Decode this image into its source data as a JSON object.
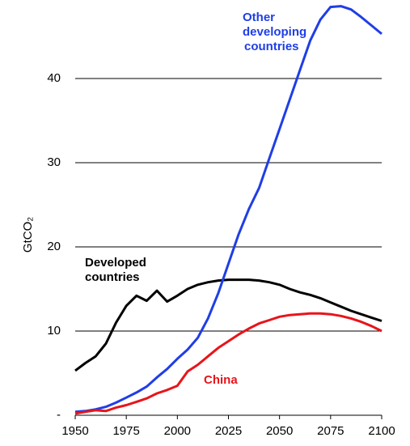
{
  "chart_data": {
    "type": "line",
    "ylabel": "GtCO₂",
    "x": [
      1950,
      1955,
      1960,
      1965,
      1970,
      1975,
      1980,
      1985,
      1990,
      1995,
      2000,
      2005,
      2010,
      2015,
      2020,
      2025,
      2030,
      2035,
      2040,
      2045,
      2050,
      2055,
      2060,
      2065,
      2070,
      2075,
      2080,
      2085,
      2090,
      2095,
      2100
    ],
    "xlim": [
      1950,
      2100
    ],
    "xticks": [
      1950,
      1975,
      2000,
      2025,
      2050,
      2075,
      2100
    ],
    "ylim": [
      0,
      50
    ],
    "yticks": [
      {
        "value": 0,
        "label": "-"
      },
      10,
      20,
      30,
      40
    ],
    "grid": true,
    "series": [
      {
        "label": [
          "Developed",
          "countries"
        ],
        "color": "#000000",
        "values": [
          5.3,
          6.2,
          7,
          8.5,
          11,
          13,
          14.2,
          13.6,
          14.8,
          13.5,
          14.2,
          15,
          15.5,
          15.8,
          16,
          16.1,
          16.1,
          16.1,
          16,
          15.8,
          15.5,
          15,
          14.6,
          14.3,
          13.9,
          13.4,
          12.9,
          12.4,
          12,
          11.6,
          11.2
        ]
      },
      {
        "label": [
          "Other",
          "developing",
          "countries"
        ],
        "color": "#1f3ee6",
        "values": [
          0.4,
          0.5,
          0.7,
          1.0,
          1.5,
          2.1,
          2.7,
          3.4,
          4.5,
          5.5,
          6.7,
          7.8,
          9.2,
          11.5,
          14.5,
          18,
          21.5,
          24.5,
          27,
          30.5,
          34,
          37.5,
          41,
          44.5,
          47,
          48.5,
          48.6,
          48.2,
          47.3,
          46.3,
          45.3
        ]
      },
      {
        "label": [
          "China"
        ],
        "color": "#e8141a",
        "values": [
          0.2,
          0.4,
          0.6,
          0.5,
          0.9,
          1.2,
          1.6,
          2.0,
          2.6,
          3.0,
          3.5,
          5.2,
          6,
          7,
          8,
          8.8,
          9.6,
          10.3,
          10.9,
          11.3,
          11.7,
          11.9,
          12,
          12.1,
          12.1,
          12,
          11.8,
          11.5,
          11.1,
          10.6,
          10
        ]
      }
    ]
  }
}
